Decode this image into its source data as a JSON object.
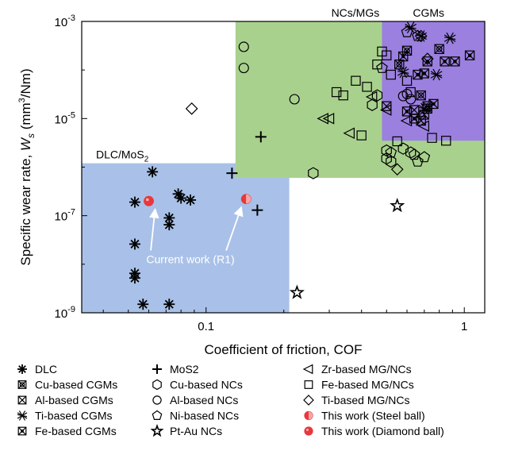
{
  "chart_data": {
    "type": "scatter",
    "xlabel": "Coefficient of friction, COF",
    "ylabel_parts": [
      "Specific wear rate, ",
      "W",
      "s",
      " (mm",
      "3",
      "/Nm)"
    ],
    "xscale": "log",
    "yscale": "log",
    "xlim": [
      0.033,
      1.2
    ],
    "ylim": [
      1e-09,
      0.001
    ],
    "x_ticks": [
      {
        "value": 0.1,
        "label": "0.1"
      },
      {
        "value": 1,
        "label": "1"
      }
    ],
    "y_ticks": [
      {
        "value": 1e-09,
        "base": "10",
        "exp": "-9"
      },
      {
        "value": 1e-07,
        "base": "10",
        "exp": "-7"
      },
      {
        "value": 1e-05,
        "base": "10",
        "exp": "-5"
      },
      {
        "value": 0.001,
        "base": "10",
        "exp": "-3"
      }
    ],
    "regions": [
      {
        "name": "DLC/MoS",
        "sub": "2",
        "x": [
          0.033,
          0.21
        ],
        "y": [
          1e-09,
          1.2e-06
        ],
        "color": "#a9c1e8",
        "label_pos": "top-left"
      },
      {
        "name": "NCs/MGs",
        "sub": "",
        "x": [
          0.13,
          1.2
        ],
        "y": [
          6e-07,
          0.001
        ],
        "color": "#a9d18e",
        "label_pos": "top-center"
      },
      {
        "name": "CGMs",
        "sub": "",
        "x": [
          0.48,
          1.2
        ],
        "y": [
          3.5e-06,
          0.001
        ],
        "color": "#9b80e0",
        "label_pos": "top-center"
      }
    ],
    "annotation": {
      "text": "Current work (R1)",
      "x": 0.087,
      "y": 1.05e-08
    },
    "series": [
      {
        "name": "DLC",
        "marker": "asterisk",
        "points": [
          [
            0.062,
            8e-07
          ],
          [
            0.053,
            1.9e-07
          ],
          [
            0.078,
            2.8e-07
          ],
          [
            0.08,
            2.3e-07
          ],
          [
            0.087,
            2.1e-07
          ],
          [
            0.072,
            9e-08
          ],
          [
            0.072,
            6.5e-08
          ],
          [
            0.053,
            2.6e-08
          ],
          [
            0.053,
            6.5e-09
          ],
          [
            0.053,
            5.2e-09
          ],
          [
            0.057,
            1.5e-09
          ],
          [
            0.072,
            1.5e-09
          ]
        ]
      },
      {
        "name": "MoS2",
        "marker": "plus",
        "points": [
          [
            0.163,
            4.2e-06
          ],
          [
            0.126,
            7.5e-07
          ],
          [
            0.158,
            1.3e-07
          ]
        ]
      },
      {
        "name": "Zr-based MG/NCs",
        "marker": "triangle-left",
        "points": [
          [
            0.285,
            1e-05
          ],
          [
            0.3,
            1e-05
          ],
          [
            0.36,
            5e-06
          ],
          [
            0.44,
            2.8e-05
          ],
          [
            0.5,
            1.5e-05
          ],
          [
            0.6,
            9e-06
          ],
          [
            0.7,
            7e-06
          ]
        ]
      },
      {
        "name": "Cu-based CGMs",
        "marker": "square-x-circle",
        "points": [
          [
            0.56,
            0.00013
          ],
          [
            0.6,
            0.00025
          ],
          [
            0.72,
            1.6e-05
          ],
          [
            0.8,
            0.00027
          ],
          [
            0.68,
            3e-05
          ]
        ]
      },
      {
        "name": "Cu-based NCs",
        "marker": "hexagon",
        "points": [
          [
            0.26,
            7.5e-07
          ],
          [
            0.44,
            1.9e-05
          ],
          [
            0.46,
            3e-05
          ],
          [
            0.5,
            2.2e-06
          ],
          [
            0.5,
            1.5e-06
          ],
          [
            0.52,
            1.3e-06
          ],
          [
            0.58,
            2.4e-06
          ],
          [
            0.62,
            2e-06
          ]
        ]
      },
      {
        "name": "Fe-based MG/NCs",
        "marker": "square",
        "points": [
          [
            0.34,
            3e-05
          ],
          [
            0.38,
            6e-05
          ],
          [
            0.42,
            4.5e-05
          ],
          [
            0.46,
            0.00013
          ],
          [
            0.48,
            0.00024
          ],
          [
            0.52,
            8e-05
          ],
          [
            0.6,
            6e-05
          ],
          [
            0.4,
            4.5e-06
          ],
          [
            0.55,
            3.4e-06
          ],
          [
            0.75,
            4e-06
          ],
          [
            0.85,
            3.5e-06
          ],
          [
            0.5,
            0.0002
          ],
          [
            0.62,
            3.5e-05
          ],
          [
            0.32,
            3.5e-05
          ]
        ]
      },
      {
        "name": "Al-based CGMs",
        "marker": "square-x",
        "points": [
          [
            0.5,
            1.8e-05
          ],
          [
            0.64,
            1.5e-05
          ],
          [
            0.7,
            1.2e-05
          ],
          [
            0.72,
            1.8e-05
          ],
          [
            0.68,
            9e-06
          ]
        ]
      },
      {
        "name": "Al-based NCs",
        "marker": "circle",
        "points": [
          [
            0.14,
            0.0003
          ],
          [
            0.14,
            0.00011
          ],
          [
            0.22,
            2.5e-05
          ],
          [
            0.58,
            2.9e-05
          ],
          [
            0.6,
            3.2e-05
          ],
          [
            0.62,
            2.5e-05
          ]
        ]
      },
      {
        "name": "Ti-based MG/NCs",
        "marker": "diamond",
        "points": [
          [
            0.088,
            1.6e-05
          ],
          [
            0.55,
            9e-07
          ],
          [
            0.68,
            0.0005
          ],
          [
            0.72,
            0.00017
          ]
        ]
      },
      {
        "name": "Ti-based CGMs",
        "marker": "double-x",
        "points": [
          [
            0.62,
            0.00075
          ],
          [
            0.68,
            0.0005
          ],
          [
            0.78,
            8e-05
          ],
          [
            0.88,
            0.00045
          ],
          [
            0.58,
            9e-05
          ],
          [
            0.7,
            1.6e-05
          ]
        ]
      },
      {
        "name": "Ni-based NCs",
        "marker": "pentagon",
        "points": [
          [
            0.48,
            0.00011
          ],
          [
            0.52,
            2e-06
          ],
          [
            0.64,
            1.8e-06
          ],
          [
            0.66,
            1.3e-06
          ],
          [
            0.7,
            1.6e-06
          ],
          [
            0.66,
            0.0005
          ],
          [
            0.6,
            0.0006
          ]
        ]
      },
      {
        "name": "This work (Steel ball)",
        "marker": "half-filled-circle",
        "color": "#e8383c",
        "points": [
          [
            0.143,
            2.2e-07
          ]
        ]
      },
      {
        "name": "Fe-based CGMs",
        "marker": "square-dot-x",
        "points": [
          [
            0.58,
            0.00019
          ],
          [
            0.66,
            8e-05
          ],
          [
            0.72,
            0.00015
          ],
          [
            0.76,
            2e-05
          ],
          [
            0.84,
            0.00015
          ],
          [
            0.64,
            1e-05
          ],
          [
            0.7,
            8.5e-05
          ],
          [
            0.92,
            0.00015
          ],
          [
            1.05,
            0.0002
          ],
          [
            0.6,
            1.4e-05
          ]
        ]
      },
      {
        "name": "Pt-Au NCs",
        "marker": "star",
        "points": [
          [
            0.55,
            1.6e-07
          ],
          [
            0.225,
            2.6e-09
          ]
        ]
      },
      {
        "name": "This work (Diamond ball)",
        "marker": "filled-circle",
        "color": "#e8383c",
        "points": [
          [
            0.06,
            2e-07
          ]
        ]
      }
    ],
    "legend_columns": [
      [
        "DLC",
        "Cu-based CGMs",
        "Al-based CGMs",
        "Ti-based CGMs",
        "Fe-based CGMs"
      ],
      [
        "MoS2",
        "Cu-based NCs",
        "Al-based NCs",
        "Ni-based NCs",
        "Pt-Au NCs"
      ],
      [
        "Zr-based MG/NCs",
        "Fe-based MG/NCs",
        "Ti-based MG/NCs",
        "This work (Steel ball)",
        "This work (Diamond ball)"
      ]
    ]
  }
}
